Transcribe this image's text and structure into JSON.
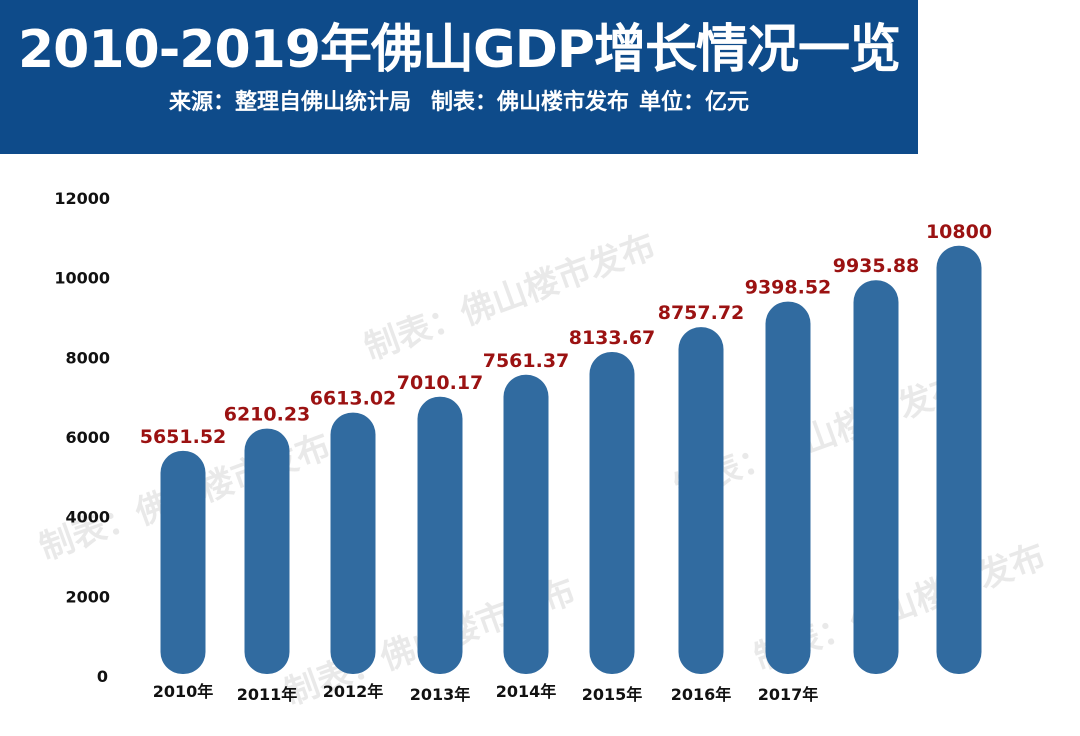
{
  "header": {
    "title": "2010-2019年佛山GDP增长情况一览",
    "source": "来源：整理自佛山统计局",
    "maker": "制表：佛山楼市发布",
    "unit": "单位：亿元"
  },
  "colors": {
    "banner": "#0e4b8a",
    "bar": "#316ba0",
    "data_label": "#9b1212",
    "axis_text": "#111111"
  },
  "watermarks": [
    "制表：佛山楼市发布",
    "制表：佛山楼市发布",
    "制表：佛山楼市发布",
    "制表：佛山楼市发布",
    "制表：佛山楼市发布"
  ],
  "chart_data": {
    "type": "bar",
    "title": "2010-2019年佛山GDP增长情况一览",
    "xlabel": "",
    "ylabel": "",
    "ylim": [
      0,
      12000
    ],
    "yticks": [
      0,
      2000,
      4000,
      6000,
      8000,
      10000,
      12000
    ],
    "grid": false,
    "categories": [
      "2010年",
      "2011年",
      "2012年",
      "2013年",
      "2014年",
      "2015年",
      "2016年",
      "2017年",
      "",
      ""
    ],
    "values": [
      5651.52,
      6210.23,
      6613.02,
      7010.17,
      7561.37,
      8133.67,
      8757.72,
      9398.52,
      9935.88,
      10800
    ],
    "data_labels": [
      "5651.52",
      "6210.23",
      "6613.02",
      "7010.17",
      "7561.37",
      "8133.67",
      "8757.72",
      "9398.52",
      "9935.88",
      "10800"
    ]
  }
}
